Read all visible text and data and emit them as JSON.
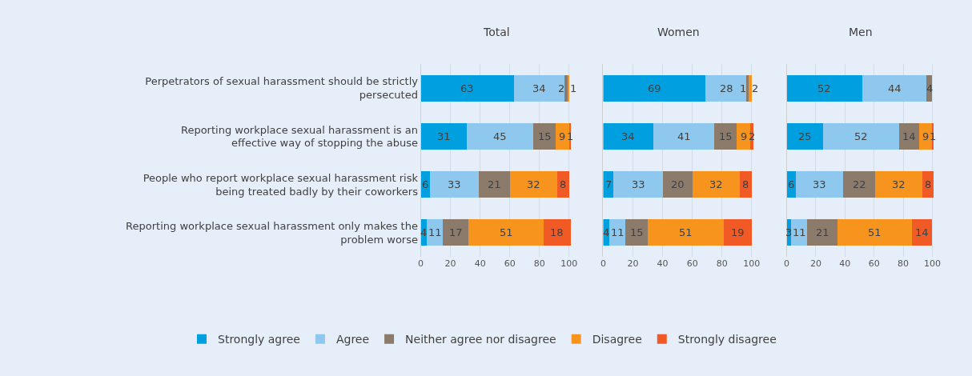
{
  "chart_data": [
    {
      "type": "bar",
      "title": "Total",
      "orientation": "horizontal",
      "stacked": true,
      "data_labels": true,
      "grid": "x",
      "legend": "bottom",
      "categories": [
        "Perpetrators of sexual harassment should be strictly persecuted",
        "Reporting workplace sexual harassment is an effective way of stopping the abuse",
        "People who report workplace sexual harassment risk being treated badly by their coworkers",
        "Reporting workplace sexual harassment only makes the problem worse"
      ],
      "xlim": [
        0,
        102
      ],
      "xticks": [
        0,
        20,
        40,
        60,
        80,
        100
      ],
      "series": [
        {
          "name": "Strongly agree",
          "color": "#009fdf",
          "values": [
            63,
            31,
            6,
            4
          ]
        },
        {
          "name": "Agree",
          "color": "#8ec8ee",
          "values": [
            34,
            45,
            33,
            11
          ]
        },
        {
          "name": "Neither agree nor disagree",
          "color": "#8c7b6b",
          "values": [
            2,
            15,
            21,
            17
          ]
        },
        {
          "name": "Disagree",
          "color": "#f7941d",
          "values": [
            1,
            9,
            32,
            51
          ]
        },
        {
          "name": "Strongly disagree",
          "color": "#f15a24",
          "values": [
            null,
            1,
            8,
            18
          ]
        }
      ]
    },
    {
      "type": "bar",
      "title": "Women",
      "orientation": "horizontal",
      "stacked": true,
      "data_labels": true,
      "grid": "x",
      "tick_labels": "x",
      "categories": [
        null,
        null,
        null,
        null
      ],
      "xlim": [
        0,
        102
      ],
      "xticks": [
        0,
        20,
        40,
        60,
        80,
        100
      ],
      "series": [
        {
          "color": "#009fdf",
          "values": [
            69,
            34,
            7,
            4
          ]
        },
        {
          "color": "#8ec8ee",
          "values": [
            28,
            41,
            33,
            11
          ]
        },
        {
          "color": "#8c7b6b",
          "values": [
            1,
            15,
            20,
            15
          ]
        },
        {
          "color": "#f7941d",
          "values": [
            2,
            9,
            32,
            51
          ]
        },
        {
          "color": "#f15a24",
          "values": [
            null,
            2,
            8,
            19
          ]
        }
      ]
    },
    {
      "type": "bar",
      "title": "Men",
      "orientation": "horizontal",
      "stacked": true,
      "data_labels": true,
      "grid": "x",
      "tick_labels": "x",
      "categories": [
        null,
        null,
        null,
        null
      ],
      "xlim": [
        0,
        102
      ],
      "xticks": [
        0,
        20,
        40,
        60,
        80,
        100
      ],
      "series": [
        {
          "color": "#009fdf",
          "values": [
            52,
            25,
            6,
            3
          ]
        },
        {
          "color": "#8ec8ee",
          "values": [
            44,
            52,
            33,
            11
          ]
        },
        {
          "color": "#8c7b6b",
          "values": [
            4,
            14,
            22,
            21
          ]
        },
        {
          "color": "#f7941d",
          "values": [
            null,
            9,
            32,
            51
          ]
        },
        {
          "color": "#f15a24",
          "values": [
            null,
            1,
            8,
            14
          ]
        }
      ]
    }
  ]
}
